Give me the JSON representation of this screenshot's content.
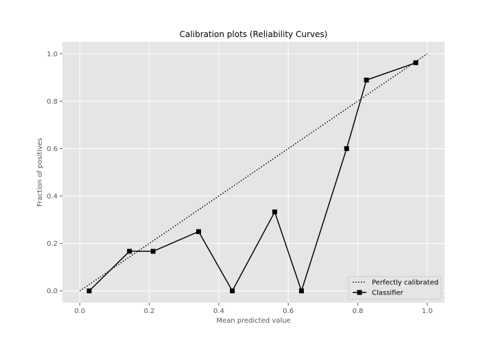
{
  "chart_data": {
    "type": "line",
    "title": "Calibration plots (Reliability Curves)",
    "xlabel": "Mean predicted value",
    "ylabel": "Fraction of positives",
    "xlim": [
      -0.05,
      1.05
    ],
    "ylim": [
      -0.05,
      1.05
    ],
    "x_ticks": [
      0.0,
      0.2,
      0.4,
      0.6,
      0.8,
      1.0
    ],
    "y_ticks": [
      0.0,
      0.2,
      0.4,
      0.6,
      0.8,
      1.0
    ],
    "x_tick_labels": [
      "0.0",
      "0.2",
      "0.4",
      "0.6",
      "0.8",
      "1.0"
    ],
    "y_tick_labels": [
      "0.0",
      "0.2",
      "0.4",
      "0.6",
      "0.8",
      "1.0"
    ],
    "grid": true,
    "legend_position": "bottom-right",
    "series": [
      {
        "name": "Perfectly calibrated",
        "style": "dotted",
        "color": "#000000",
        "x": [
          0.0,
          1.0
        ],
        "y": [
          0.0,
          1.0
        ]
      },
      {
        "name": "Classifier",
        "style": "solid-square-markers",
        "color": "#000000",
        "x": [
          0.027,
          0.143,
          0.211,
          0.342,
          0.439,
          0.561,
          0.638,
          0.768,
          0.825,
          0.967
        ],
        "y": [
          0.0,
          0.167,
          0.167,
          0.25,
          0.0,
          0.333,
          0.0,
          0.6,
          0.889,
          0.962
        ]
      }
    ],
    "colors": {
      "plot_background": "#e5e5e5",
      "grid": "#ffffff",
      "legend_background": "#e5e5e5",
      "legend_border": "#cccccc"
    }
  }
}
